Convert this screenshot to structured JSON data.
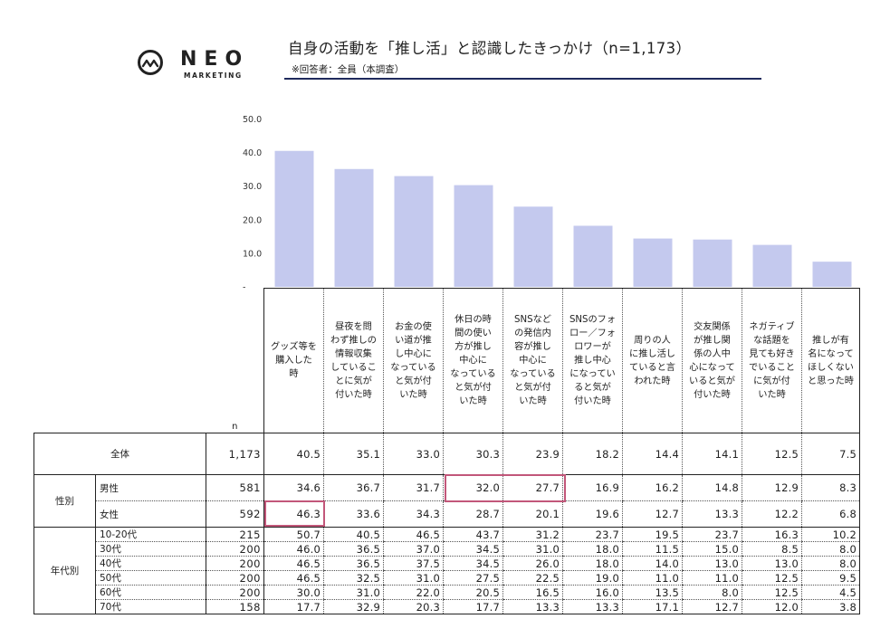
{
  "logo": {
    "icon": "wave-in-circle-icon",
    "word": "NEO",
    "subword": "MARKETING"
  },
  "title": "自身の活動を「推し活」と認識したきっかけ（n=1,173）",
  "subtitle": "※回答者：全員（本調査）",
  "colors": {
    "bar": "#c4c9ee",
    "highlight": "#c2577a",
    "title_rule": "#1f2a5c"
  },
  "chart_data": {
    "type": "bar",
    "categories": [
      "グッズ等を購入した時",
      "昼夜を問わず推しの情報収集していることに気が付いた時",
      "お金の使い道が推し中心になっていると気が付いた時",
      "休日の時間の使い方が推し中心になっていると気が付いた時",
      "SNSなどの発信内容が推し中心になっていると気が付いた時",
      "SNSのフォロー／フォロワーが推し中心になっていると気が付いた時",
      "周りの人に推し活していると言われた時",
      "交友関係が推し関係の人中心になっていると気が付いた時",
      "ネガティブな話題を見ても好きでいることに気が付いた時",
      "推しが有名になってほしくないと思った時"
    ],
    "values": [
      40.5,
      35.1,
      33.0,
      30.3,
      23.9,
      18.2,
      14.4,
      14.1,
      12.5,
      7.5
    ],
    "ylim": [
      0,
      50
    ],
    "yticks": [
      "50.0",
      "40.0",
      "30.0",
      "20.0",
      "10.0",
      "-"
    ],
    "grid": false
  },
  "table": {
    "n_header": "n",
    "headers": [
      "グッズ等を購入した時",
      "昼夜を問わず推しの情報収集していることに気が付いた時",
      "お金の使い道が推し中心になっていると気が付いた時",
      "休日の時間の使い方が推し中心になっていると気が付いた時",
      "SNSなどの発信内容が推し中心になっていると気が付いた時",
      "SNSのフォロー／フォロワーが推し中心になっていると気が付いた時",
      "周りの人に推し活していると言われた時",
      "交友関係が推し関係の人中心になっていると気が付いた時",
      "ネガティブな話題を見ても好きでいることに気が付いた時",
      "推しが有名になってほしくないと思った時"
    ],
    "header_lines": [
      [
        "グッズ等を",
        "購入した",
        "時"
      ],
      [
        "昼夜を問",
        "わず推しの",
        "情報収集",
        "しているこ",
        "とに気が",
        "付いた時"
      ],
      [
        "お金の使",
        "い道が推",
        "し中心に",
        "なっている",
        "と気が付",
        "いた時"
      ],
      [
        "休日の時",
        "間の使い",
        "方が推し",
        "中心に",
        "なっている",
        "と気が付",
        "いた時"
      ],
      [
        "SNSなど",
        "の発信内",
        "容が推し",
        "中心に",
        "なっている",
        "と気が付",
        "いた時"
      ],
      [
        "SNSのフォ",
        "ロー／フォ",
        "ロワーが",
        "推し中心",
        "になってい",
        "ると気が",
        "付いた時"
      ],
      [
        "周りの人",
        "に推し活し",
        "ていると言",
        "われた時"
      ],
      [
        "交友関係",
        "が推し関",
        "係の人中",
        "心になって",
        "いると気が",
        "付いた時"
      ],
      [
        "ネガティブ",
        "な話題を",
        "見ても好き",
        "でいること",
        "に気が付",
        "いた時"
      ],
      [
        "推しが有",
        "名になって",
        "ほしくない",
        "と思った時"
      ]
    ],
    "total": {
      "label": "全体",
      "n": "1,173",
      "values": [
        "40.5",
        "35.1",
        "33.0",
        "30.3",
        "23.9",
        "18.2",
        "14.4",
        "14.1",
        "12.5",
        "7.5"
      ]
    },
    "gender": {
      "group_label": "性別",
      "rows": [
        {
          "label": "男性",
          "n": "581",
          "values": [
            "34.6",
            "36.7",
            "31.7",
            "32.0",
            "27.7",
            "16.9",
            "16.2",
            "14.8",
            "12.9",
            "8.3"
          ]
        },
        {
          "label": "女性",
          "n": "592",
          "values": [
            "46.3",
            "33.6",
            "34.3",
            "28.7",
            "20.1",
            "19.6",
            "12.7",
            "13.3",
            "12.2",
            "6.8"
          ]
        }
      ]
    },
    "age": {
      "group_label": "年代別",
      "rows": [
        {
          "label": "10-20代",
          "n": "215",
          "values": [
            "50.7",
            "40.5",
            "46.5",
            "43.7",
            "31.2",
            "23.7",
            "19.5",
            "23.7",
            "16.3",
            "10.2"
          ]
        },
        {
          "label": "30代",
          "n": "200",
          "values": [
            "46.0",
            "36.5",
            "37.0",
            "34.5",
            "31.0",
            "18.0",
            "11.5",
            "15.0",
            "8.5",
            "8.0"
          ]
        },
        {
          "label": "40代",
          "n": "200",
          "values": [
            "46.5",
            "36.5",
            "37.5",
            "34.5",
            "26.0",
            "18.0",
            "14.0",
            "13.0",
            "13.0",
            "8.0"
          ]
        },
        {
          "label": "50代",
          "n": "200",
          "values": [
            "46.5",
            "32.5",
            "31.0",
            "27.5",
            "22.5",
            "19.0",
            "11.0",
            "11.0",
            "12.5",
            "9.5"
          ]
        },
        {
          "label": "60代",
          "n": "200",
          "values": [
            "30.0",
            "31.0",
            "22.0",
            "20.5",
            "16.5",
            "16.0",
            "13.5",
            "8.0",
            "12.5",
            "4.5"
          ]
        },
        {
          "label": "70代",
          "n": "158",
          "values": [
            "17.7",
            "32.9",
            "20.3",
            "17.7",
            "13.3",
            "13.3",
            "17.1",
            "12.7",
            "12.0",
            "3.8"
          ]
        }
      ]
    }
  }
}
